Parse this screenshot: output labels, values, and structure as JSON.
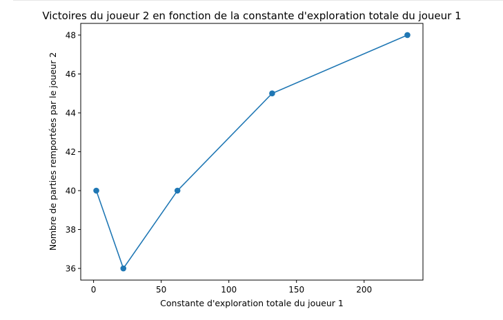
{
  "chart_data": {
    "type": "line",
    "title": "Victoires du joueur 2 en fonction de la constante d'exploration totale du joueur 1",
    "xlabel": "Constante d'exploration totale du joueur 1",
    "ylabel": "Nombre de parties remportées par le joueur 2",
    "x": [
      2,
      22,
      62,
      132,
      232
    ],
    "series": [
      {
        "values": [
          40,
          36,
          40,
          45,
          48
        ],
        "color": "#1f77b4",
        "marker": "circle"
      }
    ],
    "xlim": [
      -9.5,
      243.5
    ],
    "ylim": [
      35.4,
      48.6
    ],
    "xticks": [
      0,
      50,
      100,
      150,
      200
    ],
    "yticks": [
      36,
      38,
      40,
      42,
      44,
      46,
      48
    ],
    "grid": false,
    "legend": "none"
  }
}
